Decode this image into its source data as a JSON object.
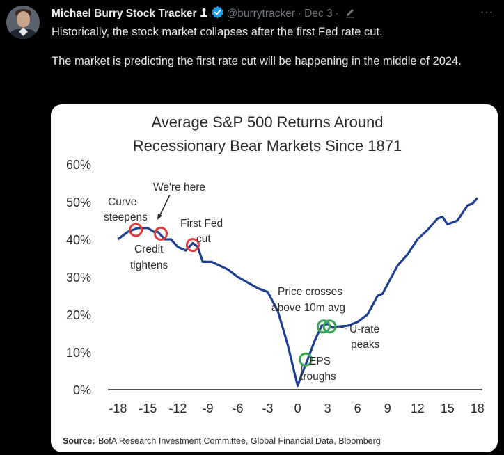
{
  "tweet": {
    "author_name": "Michael Burry Stock Tracker",
    "handle": "@burrytracker",
    "separator": "·",
    "date": "Dec 3",
    "more_label": "···",
    "text_line1": "Historically, the stock market collapses after the first Fed rate cut.",
    "text_line2": "The market is predicting the first rate cut will be happening in the middle of 2024.",
    "colors": {
      "background": "#000000",
      "text": "#e7e9ea",
      "muted": "#71767b",
      "verified": "#1d9bf0"
    }
  },
  "chart_data": {
    "type": "line",
    "title_line1": "Average S&P 500 Returns Around",
    "title_line2": "Recessionary Bear Markets Since 1871",
    "xlabel": "",
    "ylabel": "",
    "xlim": [
      -19,
      18.5
    ],
    "ylim": [
      0,
      60
    ],
    "x_ticks": [
      -18,
      -15,
      -12,
      -9,
      -6,
      -3,
      0,
      3,
      6,
      9,
      12,
      15,
      18
    ],
    "y_ticks": [
      0,
      10,
      20,
      30,
      40,
      50,
      60
    ],
    "y_tick_labels": [
      "0%",
      "10%",
      "20%",
      "30%",
      "40%",
      "50%",
      "60%"
    ],
    "series": [
      {
        "name": "Average S&P 500 return",
        "color": "#1c3f94",
        "x": [
          -18,
          -17,
          -16,
          -15,
          -14.4,
          -14,
          -13.3,
          -12.7,
          -12,
          -11.2,
          -10.5,
          -10,
          -9.5,
          -8.6,
          -7.8,
          -7,
          -6,
          -5,
          -4,
          -3,
          -2,
          -1,
          0,
          0.4,
          1,
          1.7,
          2.4,
          2.7,
          3,
          3.5,
          4,
          5,
          6,
          7,
          7.5,
          8,
          8.5,
          9,
          10,
          11,
          12,
          13,
          14,
          14.5,
          15,
          15.5,
          16,
          16.5,
          17,
          17.5,
          18
        ],
        "values": [
          40,
          42,
          43,
          43,
          42,
          42,
          40,
          40,
          38,
          37,
          39,
          38,
          34,
          34,
          33,
          32,
          30,
          28.5,
          27,
          26,
          21,
          12,
          1,
          4,
          8,
          13,
          17,
          17.2,
          17.5,
          16.5,
          16.8,
          17,
          18,
          20,
          22.5,
          25,
          25.5,
          28,
          33,
          36,
          40,
          42.5,
          45.5,
          46,
          44,
          44.5,
          45,
          47,
          49,
          49.5,
          51
        ]
      }
    ],
    "markers": [
      {
        "x": -16.2,
        "y": 42.5,
        "type": "circle",
        "color": "#e23b3b"
      },
      {
        "x": -13.7,
        "y": 41.5,
        "type": "circle",
        "color": "#e23b3b"
      },
      {
        "x": -10.5,
        "y": 38.5,
        "type": "circle",
        "color": "#e23b3b"
      },
      {
        "x": 0.8,
        "y": 8,
        "type": "circle",
        "color": "#3aa55a"
      },
      {
        "x": 2.6,
        "y": 16.8,
        "type": "circle",
        "color": "#3aa55a"
      },
      {
        "x": 3.2,
        "y": 16.8,
        "type": "circle",
        "color": "#3aa55a"
      }
    ],
    "annotations": {
      "curve": "Curve",
      "steepens": "steepens",
      "we_are_here": "We're here",
      "first_fed": "First Fed",
      "cut": "cut",
      "credit": "Credit",
      "tightens": "tightens",
      "price_crosses": "Price crosses",
      "above_10m": "above 10m avg",
      "u_rate": "U-rate",
      "peaks": "peaks",
      "eps": "EPS",
      "troughs": "troughs"
    },
    "source_label": "Source:",
    "source_text": "BofA Research Investment Committee, Global Financial Data, Bloomberg"
  }
}
